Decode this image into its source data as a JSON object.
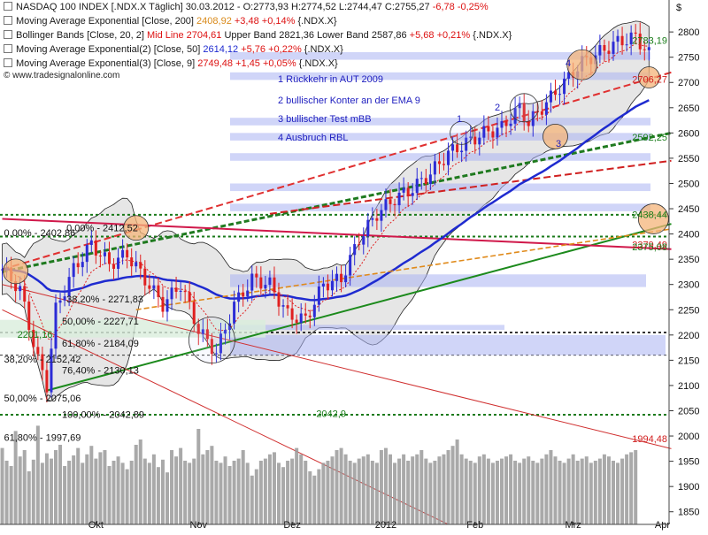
{
  "legend": {
    "line1": {
      "name": "NASDAQ 100 INDEX [.NDX.X  Täglich]",
      "date": "30.03.2012",
      "open": "O:2773,93",
      "high": "H:2774,52",
      "low": "L:2744,47",
      "close": "C:2755,27",
      "change": "-6,78",
      "change_pct": "-0,25%"
    },
    "line2": {
      "name": "Moving Average Exponential [Close, 200]",
      "value": "2408,92",
      "change": "+3,48",
      "change_pct": "+0,14%",
      "symbol": "{.NDX.X}"
    },
    "line3": {
      "name": "Bollinger Bands [Close, 20, 2]",
      "mid_label": "Mid Line",
      "mid": "2704,61",
      "upper_label": "Upper Band",
      "upper": "2821,36",
      "lower_label": "Lower Band",
      "lower": "2587,86",
      "change": "+5,68",
      "change_pct": "+0,21%",
      "symbol": "{.NDX.X}"
    },
    "line4": {
      "name": "Moving Average Exponential(2) [Close, 50]",
      "value": "2614,12",
      "change": "+5,76",
      "change_pct": "+0,22%",
      "symbol": "{.NDX.X}"
    },
    "line5": {
      "name": "Moving Average Exponential(3) [Close, 9]",
      "value": "2749,48",
      "change": "+1,45",
      "change_pct": "+0,05%",
      "symbol": "{.NDX.X}"
    },
    "source": "© www.tradesignalonline.com"
  },
  "annotations": [
    "1 Rückkehr in AUT 2009",
    "2 bullischer Konter an der EMA 9",
    "3 bullischer Test mBB",
    "4 Ausbruch RBL"
  ],
  "chart_markers": [
    "1",
    "2",
    "3",
    "4"
  ],
  "colors": {
    "candle_up": "#2c2cd6",
    "candle_down": "#e02020",
    "ema200": "#d01843",
    "ema50": "#1f2bd0",
    "ema9": "#e02020",
    "fib_line": "#1a8a1a",
    "volume": "#9a9a9a",
    "highlight": "#f4b47a"
  },
  "chart_data": {
    "type": "candlestick",
    "currency_symbol": "$",
    "y_axis": {
      "min": 1825,
      "max": 2830,
      "ticks": [
        2800,
        2750,
        2700,
        2650,
        2600,
        2550,
        2500,
        2450,
        2400,
        2350,
        2300,
        2250,
        2200,
        2150,
        2100,
        2050,
        2000,
        1950,
        1900,
        1850
      ]
    },
    "x_axis": {
      "labels": [
        "Okt",
        "Nov",
        "Dez",
        "2012",
        "Feb",
        "Mrz",
        "Apr"
      ],
      "day_index": [
        21,
        44,
        65,
        86,
        106,
        128,
        148
      ]
    },
    "right_badges": [
      {
        "label": "2783,19",
        "price": 2783.19,
        "color": "#1b7d1b"
      },
      {
        "label": "2706,27",
        "price": 2706.27,
        "color": "#d12020"
      },
      {
        "label": "2592,25",
        "price": 2592.25,
        "color": "#1b7d1b"
      },
      {
        "label": "2438,44",
        "price": 2438.44,
        "color": "#1b7d1b"
      },
      {
        "label": "2379,49",
        "price": 2379.49,
        "color": "#d12020"
      },
      {
        "label": "2375,08",
        "price": 2375.08,
        "color": "#1b7d1b"
      },
      {
        "label": "1994,48",
        "price": 1994.48,
        "color": "#d12020"
      }
    ],
    "fib_labels": [
      {
        "text": "0,00% - 2402,86",
        "price": 2402.86,
        "day": 0
      },
      {
        "text": "0,00% - 2412,52",
        "price": 2412.52,
        "day": 14
      },
      {
        "text": "38,20% - 2271,83",
        "price": 2271.83,
        "day": 14
      },
      {
        "text": "2201,16",
        "price": 2201.16,
        "day": 3
      },
      {
        "text": "50,00% - 2227,71",
        "price": 2227.71,
        "day": 13
      },
      {
        "text": "61,80% - 2184,09",
        "price": 2184.09,
        "day": 13
      },
      {
        "text": "38,20% - 2152,42",
        "price": 2152.42,
        "day": 0
      },
      {
        "text": "76,40% - 2130,13",
        "price": 2130.13,
        "day": 13
      },
      {
        "text": "50,00% - 2075,06",
        "price": 2075.06,
        "day": 0
      },
      {
        "text": "100,00% - 2042,89",
        "price": 2042.89,
        "day": 13
      },
      {
        "text": "61,80% - 1997,69",
        "price": 1997.69,
        "day": 0
      },
      {
        "text": "2042,9",
        "price": 2045,
        "day": 70
      }
    ],
    "support_levels": [
      2438,
      2395,
      2205,
      2160,
      2042
    ],
    "volume_bars": [
      72,
      60,
      55,
      88,
      64,
      70,
      50,
      61,
      93,
      58,
      67,
      62,
      70,
      75,
      55,
      60,
      65,
      72,
      58,
      66,
      74,
      62,
      68,
      70,
      55,
      60,
      64,
      58,
      52,
      60,
      75,
      80,
      62,
      58,
      66,
      54,
      61,
      49,
      70,
      64,
      72,
      60,
      58,
      62,
      90,
      66,
      70,
      74,
      60,
      58,
      64,
      55,
      60,
      62,
      70,
      58,
      46,
      52,
      60,
      62,
      66,
      68,
      58,
      54,
      60,
      62,
      72,
      66,
      60,
      50,
      46,
      52,
      58,
      60,
      64,
      70,
      72,
      66,
      60,
      58,
      62,
      64,
      66,
      60,
      58,
      70,
      72,
      66,
      58,
      62,
      66,
      60,
      64,
      66,
      70,
      62,
      58,
      60,
      64,
      66,
      70,
      74,
      80,
      66,
      62,
      60,
      58,
      64,
      66,
      62,
      58,
      60,
      62,
      64,
      66,
      60,
      58,
      62,
      64,
      60,
      58,
      62,
      66,
      70,
      64,
      60,
      58,
      62,
      66,
      60,
      62,
      64,
      58,
      60,
      62,
      66,
      64,
      60,
      58,
      62,
      66,
      68,
      70
    ]
  }
}
